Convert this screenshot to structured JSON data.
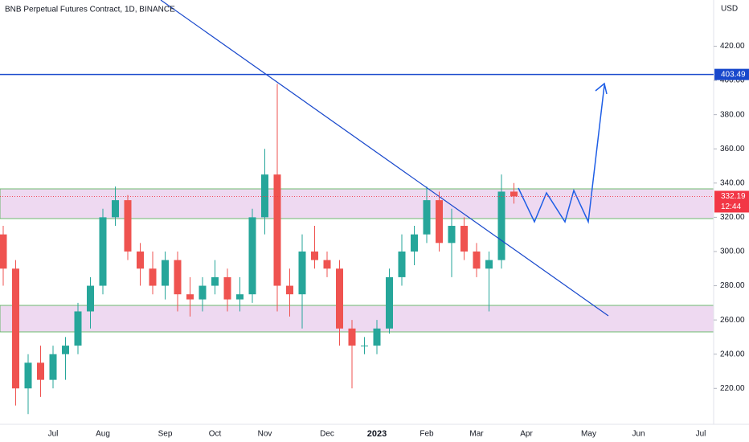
{
  "chart_data": {
    "type": "candlestick",
    "title": "BNB Perpetual Futures Contract, 1D, BINANCE",
    "currency": "USD",
    "categories": [
      null,
      null,
      null,
      null,
      "Jul",
      null,
      null,
      null,
      "Aug",
      null,
      null,
      null,
      null,
      "Sep",
      null,
      null,
      null,
      "Oct",
      null,
      null,
      null,
      "Nov",
      null,
      null,
      null,
      null,
      "Dec",
      null,
      null,
      null,
      "2023",
      null,
      null,
      null,
      "Feb",
      null,
      null,
      null,
      "Mar",
      null,
      null,
      null,
      "Apr",
      null,
      null,
      null,
      null,
      "May",
      null,
      null,
      null,
      "Jun",
      null,
      null,
      null,
      null,
      "Jul"
    ],
    "open": [
      310,
      290,
      220,
      235,
      225,
      240,
      245,
      265,
      280,
      320,
      330,
      300,
      290,
      280,
      295,
      275,
      272,
      280,
      285,
      272,
      275,
      320,
      345,
      280,
      275,
      300,
      295,
      290,
      255,
      245,
      245,
      255,
      285,
      300,
      310,
      330,
      305,
      315,
      300,
      290,
      295,
      335,
      null,
      null,
      null,
      null,
      null,
      null,
      null,
      null,
      null,
      null,
      null,
      null,
      null,
      null,
      null
    ],
    "high": [
      315,
      295,
      240,
      245,
      245,
      250,
      270,
      285,
      325,
      338,
      333,
      305,
      300,
      300,
      300,
      285,
      285,
      295,
      290,
      285,
      325,
      360,
      398,
      290,
      310,
      315,
      300,
      295,
      260,
      250,
      260,
      290,
      310,
      315,
      338,
      335,
      325,
      320,
      305,
      300,
      345,
      340,
      null,
      null,
      null,
      null,
      null,
      null,
      null,
      null,
      null,
      null,
      null,
      null,
      null,
      null,
      null
    ],
    "low": [
      280,
      210,
      205,
      215,
      220,
      225,
      240,
      255,
      275,
      315,
      295,
      280,
      275,
      272,
      265,
      262,
      265,
      275,
      265,
      265,
      270,
      310,
      265,
      262,
      255,
      290,
      285,
      245,
      220,
      240,
      240,
      252,
      280,
      292,
      305,
      300,
      285,
      295,
      285,
      265,
      290,
      328,
      null,
      null,
      null,
      null,
      null,
      null,
      null,
      null,
      null,
      null,
      null,
      null,
      null,
      null,
      null
    ],
    "close": [
      290,
      220,
      235,
      225,
      240,
      245,
      265,
      280,
      320,
      330,
      300,
      290,
      280,
      295,
      275,
      272,
      280,
      285,
      272,
      275,
      320,
      345,
      280,
      275,
      300,
      295,
      290,
      255,
      245,
      245,
      255,
      285,
      300,
      310,
      330,
      305,
      315,
      300,
      290,
      295,
      335,
      332.19,
      null,
      null,
      null,
      null,
      null,
      null,
      null,
      null,
      null,
      null,
      null,
      null,
      null,
      null,
      null
    ],
    "up_color": "#26a69a",
    "down_color": "#ef5350",
    "ylim": [
      199,
      447
    ],
    "yticks": [
      {
        "value": 220,
        "label": "220.00"
      },
      {
        "value": 240,
        "label": "240.00"
      },
      {
        "value": 260,
        "label": "260.00"
      },
      {
        "value": 280,
        "label": "280.00"
      },
      {
        "value": 300,
        "label": "300.00"
      },
      {
        "value": 320,
        "label": "320.00"
      },
      {
        "value": 340,
        "label": "340.00"
      },
      {
        "value": 360,
        "label": "360.00"
      },
      {
        "value": 380,
        "label": "380.00"
      },
      {
        "value": 400,
        "label": "400.00"
      },
      {
        "value": 420,
        "label": "420.00"
      }
    ],
    "grid": false,
    "horizontal_line": {
      "value": 403.49,
      "label": "403.49",
      "color": "#1848cc"
    },
    "last_price": {
      "value": 332.19,
      "label": "332.19",
      "countdown": "12:44",
      "color": "#f23645"
    }
  }
}
